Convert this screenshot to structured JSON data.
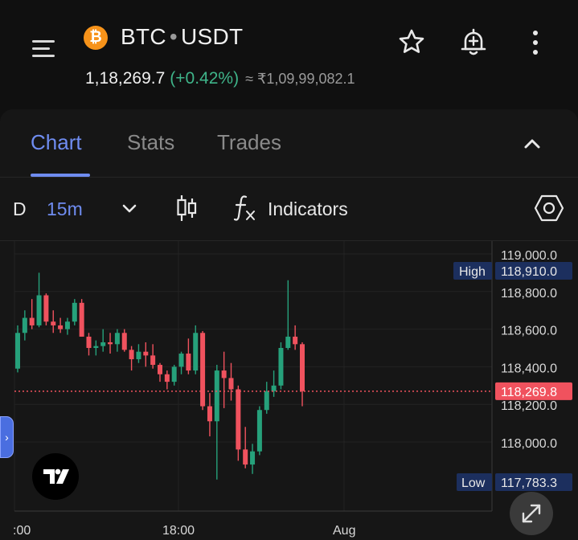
{
  "header": {
    "base": "BTC",
    "separator": "•",
    "quote": "USDT",
    "coin_symbol": "₿",
    "price": "1,18,269.7",
    "change": "(+0.42%)",
    "inr_price": "≈ ₹1,09,99,082.1",
    "icons": [
      "menu-icon",
      "star-icon",
      "price-alert-icon",
      "more-vert-icon"
    ]
  },
  "tabs": [
    {
      "label": "Chart",
      "active": true
    },
    {
      "label": "Stats",
      "active": false
    },
    {
      "label": "Trades",
      "active": false
    }
  ],
  "toolbar": {
    "type_partial": "D",
    "interval": "15m",
    "indicators_label": "Indicators"
  },
  "colors": {
    "up": "#26a17b",
    "down": "#f0525e",
    "accent": "#6f8cf0",
    "label_bg": "#1c2f5e"
  },
  "chart_data": {
    "type": "candlestick",
    "ylim": [
      117700,
      119050
    ],
    "y_ticks": [
      "119,000.0",
      "118,800.0",
      "118,600.0",
      "118,400.0",
      "118,200.0",
      "118,000.0"
    ],
    "y_tick_values": [
      119000,
      118800,
      118600,
      118400,
      118200,
      118000
    ],
    "x_ticks": [
      ":00",
      "18:00",
      "Aug"
    ],
    "high": {
      "label": "High",
      "value": "118,910.0",
      "v": 118910
    },
    "low": {
      "label": "Low",
      "value": "117,783.3",
      "v": 117783.3
    },
    "last": {
      "value": "118,269.8",
      "v": 118269.8
    },
    "candles": [
      [
        118390,
        118620,
        118370,
        118580
      ],
      [
        118580,
        118700,
        118540,
        118660
      ],
      [
        118660,
        118760,
        118600,
        118620
      ],
      [
        118620,
        118900,
        118610,
        118780
      ],
      [
        118780,
        118790,
        118620,
        118640
      ],
      [
        118640,
        118700,
        118580,
        118620
      ],
      [
        118620,
        118660,
        118580,
        118600
      ],
      [
        118600,
        118660,
        118570,
        118640
      ],
      [
        118640,
        118760,
        118620,
        118740
      ],
      [
        118740,
        118760,
        118560,
        118560
      ],
      [
        118560,
        118580,
        118460,
        118500
      ],
      [
        118500,
        118540,
        118460,
        118510
      ],
      [
        118510,
        118600,
        118480,
        118530
      ],
      [
        118530,
        118580,
        118470,
        118520
      ],
      [
        118520,
        118600,
        118480,
        118580
      ],
      [
        118580,
        118600,
        118480,
        118490
      ],
      [
        118490,
        118510,
        118380,
        118440
      ],
      [
        118440,
        118520,
        118420,
        118480
      ],
      [
        118480,
        118530,
        118400,
        118460
      ],
      [
        118460,
        118520,
        118390,
        118410
      ],
      [
        118410,
        118420,
        118320,
        118360
      ],
      [
        118360,
        118380,
        118280,
        118320
      ],
      [
        118320,
        118410,
        118300,
        118400
      ],
      [
        118400,
        118480,
        118360,
        118470
      ],
      [
        118470,
        118550,
        118360,
        118380
      ],
      [
        118380,
        118620,
        118360,
        118580
      ],
      [
        118580,
        118590,
        118170,
        118190
      ],
      [
        118190,
        118260,
        118030,
        118110
      ],
      [
        118110,
        118410,
        117800,
        118380
      ],
      [
        118380,
        118480,
        118180,
        118340
      ],
      [
        118340,
        118420,
        118220,
        118280
      ],
      [
        118280,
        118300,
        117900,
        117960
      ],
      [
        117960,
        118080,
        117860,
        117880
      ],
      [
        117880,
        117990,
        117830,
        117950
      ],
      [
        117950,
        118190,
        117930,
        118170
      ],
      [
        118170,
        118320,
        118150,
        118270
      ],
      [
        118270,
        118380,
        118240,
        118300
      ],
      [
        118300,
        118530,
        118280,
        118500
      ],
      [
        118500,
        118860,
        118490,
        118560
      ],
      [
        118560,
        118620,
        118490,
        118520
      ],
      [
        118520,
        118530,
        118190,
        118270
      ]
    ]
  }
}
